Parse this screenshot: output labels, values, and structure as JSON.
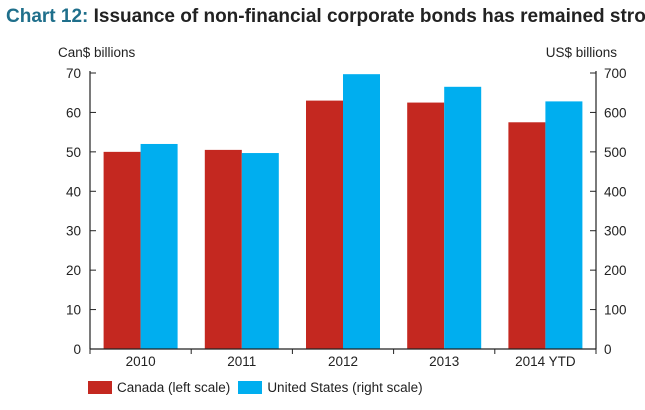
{
  "title": {
    "label": "Chart 12:",
    "text": "Issuance of non-financial corporate bonds has remained strong"
  },
  "axis_units": {
    "left": "Can$ billions",
    "right": "US$ billions"
  },
  "colors": {
    "canada": "#c42820",
    "united_states": "#00aeef",
    "axis": "#222222"
  },
  "chart_data": {
    "type": "bar",
    "categories": [
      "2010",
      "2011",
      "2012",
      "2013",
      "2014 YTD"
    ],
    "series": [
      {
        "name": "Canada (left scale)",
        "axis": "left",
        "values": [
          50,
          50.5,
          63,
          62.5,
          57.5
        ]
      },
      {
        "name": "United States (right scale)",
        "axis": "right",
        "values": [
          520,
          497,
          697,
          665,
          628
        ]
      }
    ],
    "y_left": {
      "label": "Can$ billions",
      "range": [
        0,
        70
      ],
      "ticks": [
        "0",
        "10",
        "20",
        "30",
        "40",
        "50",
        "60",
        "70"
      ]
    },
    "y_right": {
      "label": "US$ billions",
      "range": [
        0,
        700
      ],
      "ticks": [
        "0",
        "100",
        "200",
        "300",
        "400",
        "500",
        "600",
        "700"
      ]
    },
    "grid": false,
    "legend_position": "bottom-left"
  }
}
